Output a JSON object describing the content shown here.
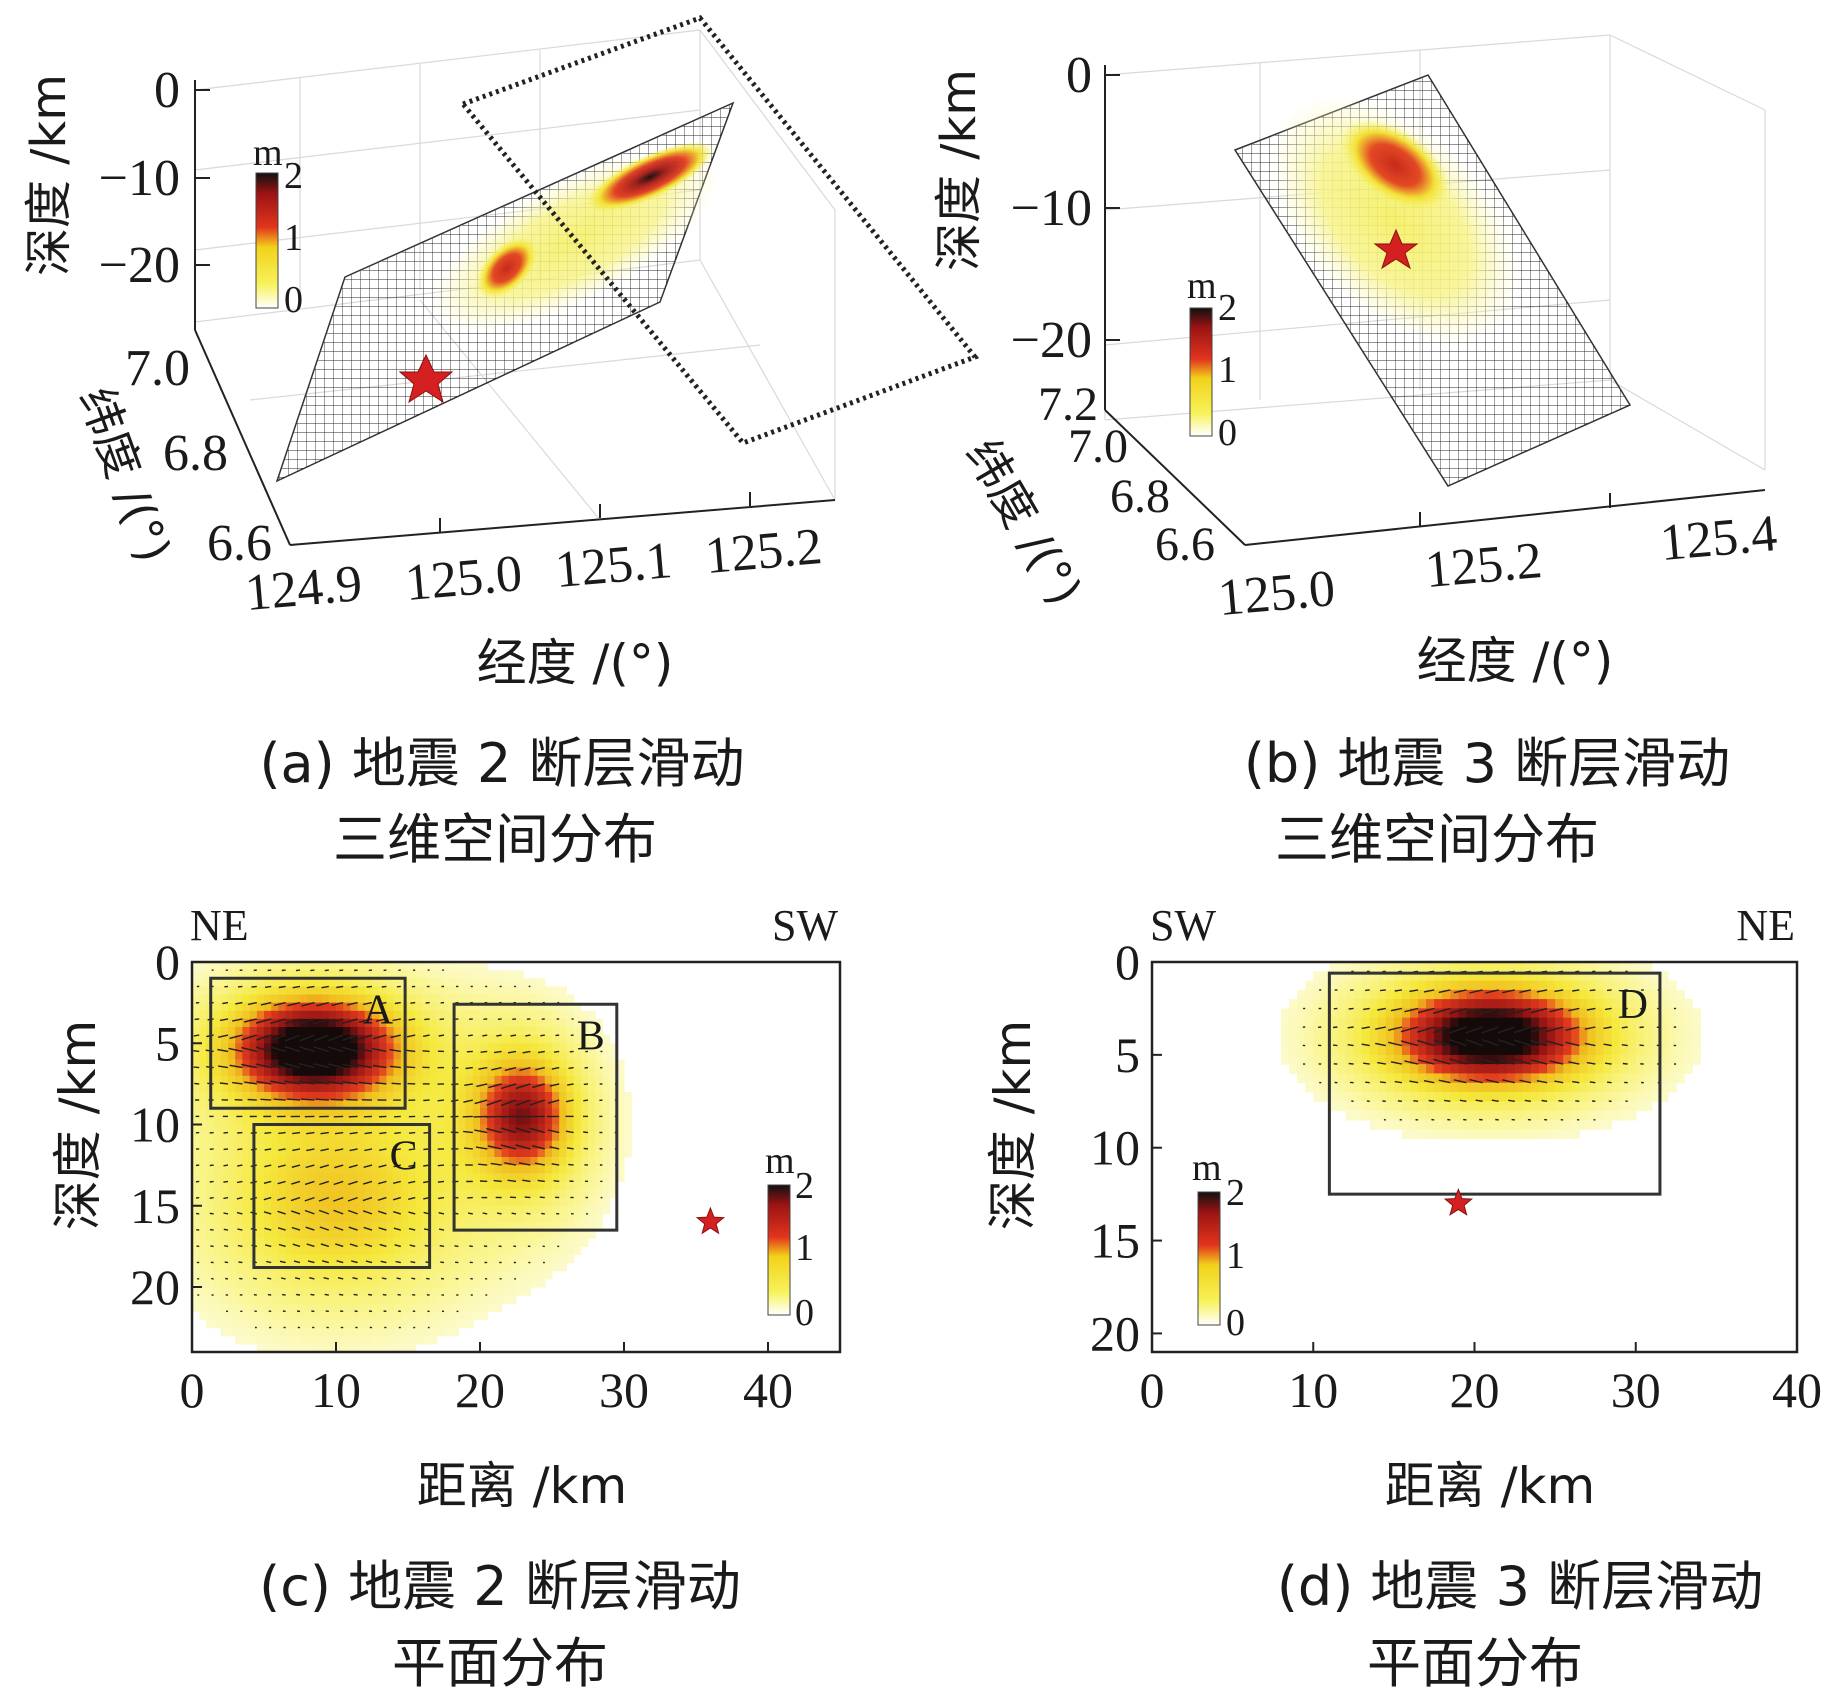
{
  "chart_data": [
    {
      "id": "a",
      "type": "heatmap",
      "view": "3d-fault-plane",
      "caption_line1": "(a) 地震 2 断层滑动",
      "caption_line2": "三维空间分布",
      "xlabel": "经度 /(°)",
      "ylabel": "纬度 /(°)",
      "zlabel": "深度 /km",
      "x_ticks": [
        "124.9",
        "125.0",
        "125.1",
        "125.2"
      ],
      "y_ticks": [
        "6.6",
        "6.8",
        "7.0"
      ],
      "z_ticks": [
        "0",
        "−10",
        "−20"
      ],
      "xlim": [
        124.87,
        125.23
      ],
      "ylim": [
        6.6,
        7.1
      ],
      "zlim": [
        -25,
        0
      ],
      "colorbar": {
        "label": "m",
        "ticks": [
          "0",
          "1",
          "2"
        ],
        "range": [
          0,
          2
        ]
      },
      "patches": [
        {
          "label": "",
          "center_u": 0.45,
          "center_v": 0.45,
          "peak": 1.3
        },
        {
          "label": "",
          "center_u": 0.75,
          "center_v": 0.65,
          "peak": 2.0
        }
      ],
      "hypocenter": {
        "u": 0.28,
        "v": 0.45
      },
      "secondary_plane": "dotted"
    },
    {
      "id": "b",
      "type": "heatmap",
      "view": "3d-fault-plane",
      "caption_line1": "(b) 地震 3 断层滑动",
      "caption_line2": "三维空间分布",
      "xlabel": "经度 /(°)",
      "ylabel": "纬度 /(°)",
      "zlabel": "深度 /km",
      "x_ticks": [
        "125.0",
        "125.2",
        "125.4"
      ],
      "y_ticks": [
        "6.6",
        "6.8",
        "7.0",
        "7.2"
      ],
      "z_ticks": [
        "0",
        "−10",
        "−20"
      ],
      "xlim": [
        125.0,
        125.45
      ],
      "ylim": [
        6.6,
        7.2
      ],
      "zlim": [
        -25,
        0
      ],
      "colorbar": {
        "label": "m",
        "ticks": [
          "0",
          "1",
          "2"
        ],
        "range": [
          0,
          2
        ]
      },
      "patches": [
        {
          "label": "",
          "center_u": 0.2,
          "center_v": 0.28,
          "peak": 1.7
        }
      ],
      "hypocenter": {
        "u": 0.35,
        "v": 0.32
      }
    },
    {
      "id": "c",
      "type": "heatmap",
      "view": "fault-plane-map",
      "caption_line1": "(c) 地震 2 断层滑动",
      "caption_line2": "平面分布",
      "xlabel": "距离 /km",
      "ylabel": "深度 /km",
      "x_ticks": [
        "0",
        "10",
        "20",
        "30",
        "40"
      ],
      "y_ticks": [
        "0",
        "5",
        "10",
        "15",
        "20"
      ],
      "xlim": [
        0,
        45
      ],
      "ylim": [
        24,
        0
      ],
      "left_label": "NE",
      "right_label": "SW",
      "colorbar": {
        "label": "m",
        "ticks": [
          "0",
          "1",
          "2"
        ],
        "range": [
          0,
          2
        ]
      },
      "patches": [
        {
          "label": "A",
          "x": [
            1.3,
            14.8
          ],
          "depth": [
            1.0,
            9.0
          ],
          "peak": 2.0,
          "cx": 8.5,
          "cd": 5.3,
          "rx": 5.5,
          "rd": 3.0
        },
        {
          "label": "B",
          "x": [
            18.2,
            29.5
          ],
          "depth": [
            2.6,
            16.5
          ],
          "peak": 1.3,
          "cx": 23.0,
          "cd": 9.5,
          "rx": 3.2,
          "rd": 3.5
        },
        {
          "label": "C",
          "x": [
            4.3,
            16.5
          ],
          "depth": [
            10.0,
            18.8
          ],
          "peak": 0.55,
          "cx": 10.0,
          "cd": 15.0,
          "rx": 6.5,
          "rd": 4.5
        }
      ],
      "hypocenter": {
        "x": 36.0,
        "depth": 16.0
      }
    },
    {
      "id": "d",
      "type": "heatmap",
      "view": "fault-plane-map",
      "caption_line1": "(d) 地震 3 断层滑动",
      "caption_line2": "平面分布",
      "xlabel": "距离 /km",
      "ylabel": "深度 /km",
      "x_ticks": [
        "0",
        "10",
        "20",
        "30",
        "40"
      ],
      "y_ticks": [
        "0",
        "5",
        "10",
        "15",
        "20"
      ],
      "xlim": [
        0,
        40
      ],
      "ylim": [
        21,
        0
      ],
      "left_label": "SW",
      "right_label": "NE",
      "colorbar": {
        "label": "m",
        "ticks": [
          "0",
          "1",
          "2"
        ],
        "range": [
          0,
          2
        ]
      },
      "patches": [
        {
          "label": "D",
          "x": [
            11.0,
            31.5
          ],
          "depth": [
            0.6,
            12.5
          ],
          "peak": 2.0,
          "cx": 21.0,
          "cd": 4.0,
          "rx": 6.0,
          "rd": 2.6
        }
      ],
      "hypocenter": {
        "x": 19.0,
        "depth": 13.0
      }
    }
  ]
}
